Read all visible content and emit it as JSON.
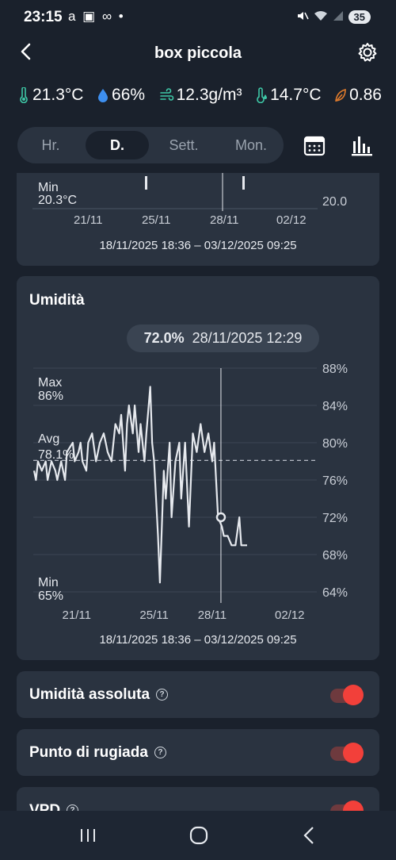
{
  "status_bar": {
    "time": "23:15",
    "left_icons": "a ▣ ∞ •",
    "battery": "35"
  },
  "app_bar": {
    "title": "box piccola"
  },
  "readings": [
    {
      "icon": "thermometer-icon",
      "value": "21.3°C",
      "color": "#3ec7a6"
    },
    {
      "icon": "drop-icon",
      "value": "66%",
      "color": "#3d8ff0"
    },
    {
      "icon": "wind-icon",
      "value": "12.3g/m³",
      "color": "#3ec7a6"
    },
    {
      "icon": "dewpoint-icon",
      "value": "14.7°C",
      "color": "#3ec7a6"
    },
    {
      "icon": "leaf-icon",
      "value": "0.86",
      "color": "#e07b2c"
    }
  ],
  "period_tabs": [
    {
      "label": "Hr.",
      "active": false
    },
    {
      "label": "D.",
      "active": true
    },
    {
      "label": "Sett.",
      "active": false
    },
    {
      "label": "Mon.",
      "active": false
    }
  ],
  "temperature_card": {
    "min_label": "Min",
    "min_value": "20.3°C",
    "y_tick": "20.0",
    "x_ticks": [
      "21/11",
      "25/11",
      "28/11",
      "02/12"
    ],
    "range": "18/11/2025 18:36 – 03/12/2025 09:25"
  },
  "humidity_card": {
    "title": "Umidità",
    "tooltip_value": "72.0%",
    "tooltip_time": "28/11/2025 12:29",
    "max_label": "Max",
    "max_value": "86%",
    "avg_label": "Avg",
    "avg_value": "78.1%",
    "min_label": "Min",
    "min_value": "65%",
    "range": "18/11/2025 18:36 – 03/12/2025 09:25"
  },
  "chart_data": {
    "type": "line",
    "title": "Umidità",
    "x_ticks": [
      "21/11",
      "25/11",
      "28/11",
      "02/12"
    ],
    "y_ticks": [
      "88%",
      "84%",
      "80%",
      "76%",
      "72%",
      "68%",
      "64%"
    ],
    "ylim": [
      64,
      88
    ],
    "avg": 78.1,
    "cursor": {
      "x_day": 28.45,
      "value": 72.0
    },
    "series": [
      {
        "x": [
          18.8,
          18.9,
          19.0,
          19.2,
          19.4,
          19.5,
          19.7,
          19.9,
          20.0,
          20.2,
          20.4,
          20.5,
          20.8,
          20.9,
          21.1,
          21.2,
          21.3,
          21.5,
          21.6,
          21.8,
          22.0,
          22.1,
          22.2,
          22.4,
          22.5,
          22.6,
          22.8,
          23.0,
          23.2,
          23.3,
          23.5,
          23.6,
          23.7,
          23.9,
          24.0,
          24.2,
          24.3,
          24.5,
          24.6,
          24.8,
          24.9,
          25.0,
          25.2,
          25.3,
          25.5,
          25.6,
          25.8,
          25.9,
          26.1,
          26.3,
          26.4,
          26.6,
          26.8,
          27.0,
          27.2,
          27.4,
          27.6,
          27.8,
          28.0,
          28.1,
          28.3,
          28.5,
          28.6,
          28.8,
          29.0,
          29.2,
          29.4,
          29.5,
          29.6,
          29.8
        ],
        "y": [
          77,
          76,
          78,
          77,
          78,
          76,
          78,
          77,
          76,
          78,
          76,
          79,
          80,
          78,
          79,
          80,
          78,
          77,
          80,
          81,
          78,
          79,
          80,
          81,
          80,
          79,
          78,
          82,
          81,
          83,
          77,
          82,
          84,
          81,
          84,
          79,
          82,
          78,
          81,
          86,
          80,
          78,
          70,
          65,
          77,
          74,
          80,
          72,
          78,
          80,
          74,
          80,
          71,
          81,
          79,
          82,
          79,
          81,
          78,
          80,
          72,
          71,
          70,
          70,
          69,
          69,
          72,
          69,
          69,
          69
        ]
      }
    ]
  },
  "toggles": [
    {
      "label": "Umidità assoluta",
      "on": true
    },
    {
      "label": "Punto di rugiada",
      "on": true
    },
    {
      "label": "VPD",
      "on": true
    }
  ]
}
